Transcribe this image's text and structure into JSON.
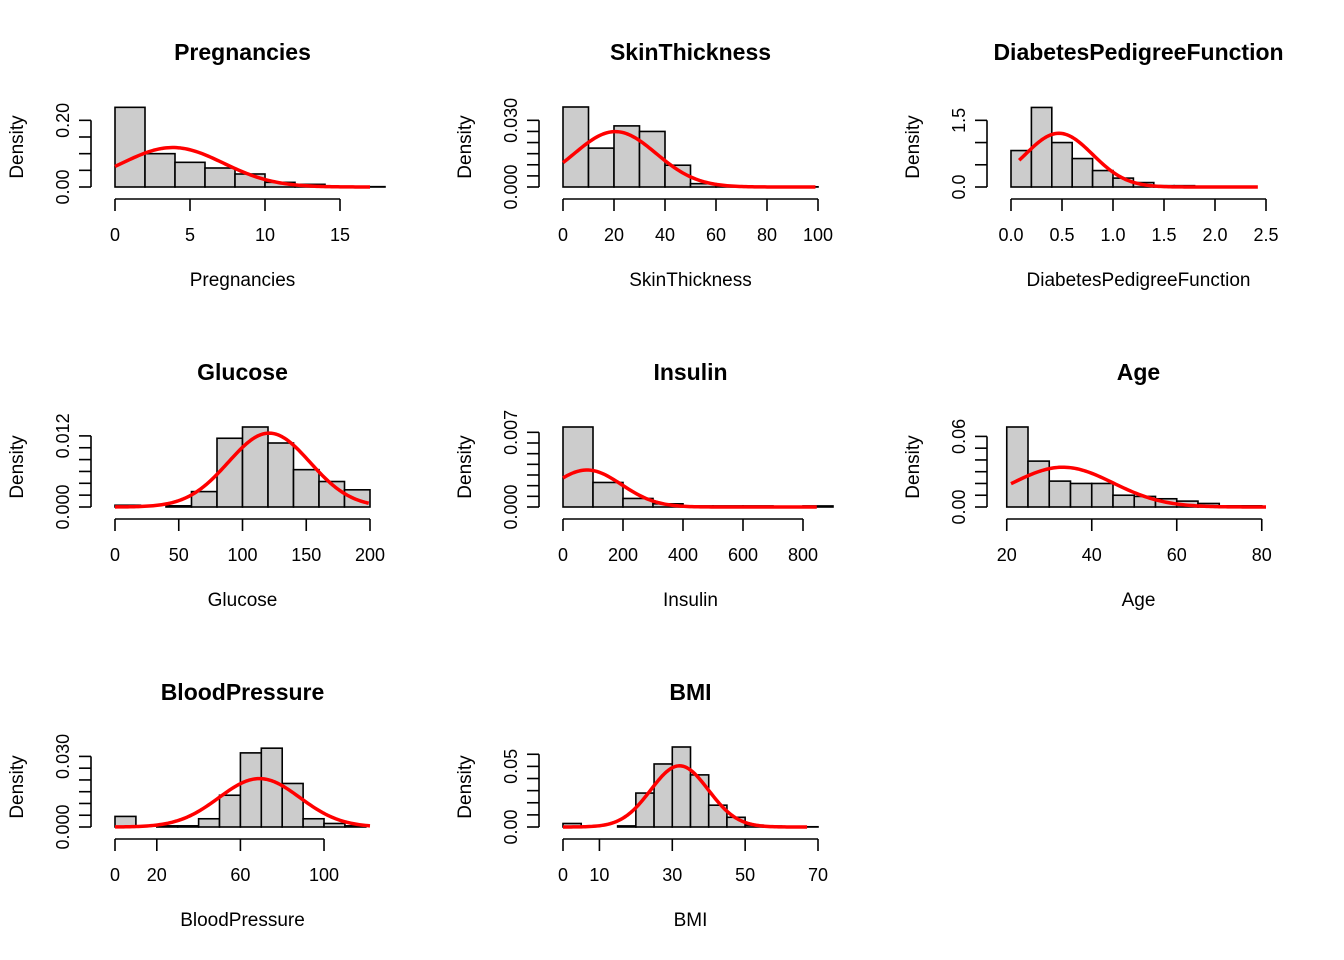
{
  "chart_data": [
    {
      "type": "bar",
      "title": "Pregnancies",
      "xlabel": "Pregnancies",
      "ylabel": "Density",
      "xlim": [
        0,
        17
      ],
      "ylim": [
        0,
        0.24
      ],
      "xticks": [
        0,
        5,
        10,
        15
      ],
      "yticks": [
        0.0,
        0.05,
        0.1,
        0.15,
        0.2
      ],
      "ytick_labels": [
        "0.00",
        "",
        "",
        "",
        "0.20"
      ],
      "bin_edges": [
        0,
        2,
        4,
        6,
        8,
        10,
        12,
        14,
        16,
        18
      ],
      "values": [
        0.239,
        0.1,
        0.074,
        0.057,
        0.039,
        0.014,
        0.008,
        0.001,
        0.001
      ],
      "density_curve": {
        "type": "normal",
        "mean": 3.85,
        "sd": 3.37
      },
      "curve_range": [
        0,
        17
      ]
    },
    {
      "type": "bar",
      "title": "SkinThickness",
      "xlabel": "SkinThickness",
      "ylabel": "Density",
      "xlim": [
        0,
        100
      ],
      "ylim": [
        0,
        0.036
      ],
      "xticks": [
        0,
        20,
        40,
        60,
        80,
        100
      ],
      "yticks": [
        0.0,
        0.005,
        0.01,
        0.015,
        0.02,
        0.025,
        0.03
      ],
      "ytick_labels": [
        "0.000",
        "",
        "",
        "",
        "",
        "",
        "0.030"
      ],
      "bin_edges": [
        0,
        10,
        20,
        30,
        40,
        50,
        60,
        70,
        80,
        90,
        100
      ],
      "values": [
        0.036,
        0.0175,
        0.0275,
        0.025,
        0.0098,
        0.0015,
        0.0003,
        0,
        0,
        0.0001
      ],
      "density_curve": {
        "type": "normal",
        "mean": 20.5,
        "sd": 16.0
      },
      "curve_range": [
        0,
        99
      ]
    },
    {
      "type": "bar",
      "title": "DiabetesPedigreeFunction",
      "xlabel": "DiabetesPedigreeFunction",
      "ylabel": "Density",
      "xlim": [
        0,
        2.5
      ],
      "ylim": [
        0,
        1.8
      ],
      "xticks": [
        0.0,
        0.5,
        1.0,
        1.5,
        2.0,
        2.5
      ],
      "xtick_labels": [
        "0.0",
        "0.5",
        "1.0",
        "1.5",
        "2.0",
        "2.5"
      ],
      "yticks": [
        0.0,
        0.5,
        1.0,
        1.5
      ],
      "ytick_labels": [
        "0.0",
        "",
        "",
        "1.5"
      ],
      "bin_edges": [
        0,
        0.2,
        0.4,
        0.6,
        0.8,
        1.0,
        1.2,
        1.4,
        1.6,
        1.8,
        2.0,
        2.2,
        2.4
      ],
      "values": [
        0.82,
        1.79,
        1.0,
        0.64,
        0.37,
        0.2,
        0.1,
        0.03,
        0.03,
        0.01,
        0.01,
        0.01
      ],
      "density_curve": {
        "type": "normal",
        "mean": 0.47,
        "sd": 0.33
      },
      "curve_range": [
        0.08,
        2.42
      ]
    },
    {
      "type": "bar",
      "title": "Glucose",
      "xlabel": "Glucose",
      "ylabel": "Density",
      "xlim": [
        0,
        200
      ],
      "ylim": [
        0,
        0.0135
      ],
      "xticks": [
        0,
        50,
        100,
        150,
        200
      ],
      "yticks": [
        0.0,
        0.002,
        0.004,
        0.006,
        0.008,
        0.01,
        0.012
      ],
      "ytick_labels": [
        "0.000",
        "",
        "",
        "",
        "",
        "",
        "0.012"
      ],
      "bin_edges": [
        0,
        20,
        40,
        60,
        80,
        100,
        120,
        140,
        160,
        180,
        200
      ],
      "values": [
        0.0003,
        0,
        0.0002,
        0.0026,
        0.0116,
        0.0135,
        0.0108,
        0.0063,
        0.0043,
        0.0029
      ],
      "density_curve": {
        "type": "normal",
        "mean": 120.9,
        "sd": 32.0
      },
      "curve_range": [
        0,
        199
      ]
    },
    {
      "type": "bar",
      "title": "Insulin",
      "xlabel": "Insulin",
      "ylabel": "Density",
      "xlim": [
        0,
        850
      ],
      "ylim": [
        0,
        0.0075
      ],
      "xticks": [
        0,
        200,
        400,
        600,
        800
      ],
      "yticks": [
        0.0,
        0.001,
        0.002,
        0.003,
        0.004,
        0.005,
        0.006,
        0.007
      ],
      "ytick_labels": [
        "0.000",
        "",
        "",
        "",
        "",
        "",
        "",
        "0.007"
      ],
      "bin_edges": [
        0,
        100,
        200,
        300,
        400,
        500,
        600,
        700,
        800,
        900
      ],
      "values": [
        0.0075,
        0.0023,
        0.0008,
        0.0003,
        0.0001,
        0.0001,
        0.0001,
        0,
        0.0001
      ],
      "density_curve": {
        "type": "normal",
        "mean": 80,
        "sd": 115
      },
      "curve_range": [
        0,
        846
      ]
    },
    {
      "type": "bar",
      "title": "Age",
      "xlabel": "Age",
      "ylabel": "Density",
      "xlim": [
        21,
        81
      ],
      "ylim": [
        0,
        0.068
      ],
      "xticks": [
        20,
        40,
        60,
        80
      ],
      "yticks": [
        0.0,
        0.01,
        0.02,
        0.03,
        0.04,
        0.05,
        0.06
      ],
      "ytick_labels": [
        "0.00",
        "",
        "",
        "",
        "",
        "",
        "0.06"
      ],
      "bin_edges": [
        20,
        25,
        30,
        35,
        40,
        45,
        50,
        55,
        60,
        65,
        70,
        75,
        80
      ],
      "values": [
        0.068,
        0.039,
        0.022,
        0.02,
        0.02,
        0.01,
        0.009,
        0.007,
        0.005,
        0.003,
        0.001,
        0.001
      ],
      "density_curve": {
        "type": "normal",
        "mean": 33.2,
        "sd": 11.8
      },
      "curve_range": [
        21,
        81
      ]
    },
    {
      "type": "bar",
      "title": "BloodPressure",
      "xlabel": "BloodPressure",
      "ylabel": "Density",
      "xlim": [
        0,
        122
      ],
      "ylim": [
        0,
        0.034
      ],
      "xticks": [
        0,
        20,
        60,
        100
      ],
      "yticks": [
        0.0,
        0.005,
        0.01,
        0.015,
        0.02,
        0.025,
        0.03
      ],
      "ytick_labels": [
        "0.000",
        "",
        "",
        "",
        "",
        "",
        "0.030"
      ],
      "bin_edges": [
        0,
        10,
        20,
        30,
        40,
        50,
        60,
        70,
        80,
        90,
        100,
        110,
        120
      ],
      "values": [
        0.0045,
        0,
        0.0005,
        0.0005,
        0.0035,
        0.0135,
        0.0315,
        0.0335,
        0.0185,
        0.0035,
        0.0015,
        0.0005
      ],
      "density_curve": {
        "type": "normal",
        "mean": 69.1,
        "sd": 19.4
      },
      "curve_range": [
        0,
        122
      ]
    },
    {
      "type": "bar",
      "title": "BMI",
      "xlabel": "BMI",
      "ylabel": "Density",
      "xlim": [
        0,
        70
      ],
      "ylim": [
        0,
        0.066
      ],
      "xticks": [
        0,
        10,
        30,
        50,
        70
      ],
      "yticks": [
        0.0,
        0.01,
        0.02,
        0.03,
        0.04,
        0.05,
        0.06
      ],
      "ytick_labels": [
        "0.00",
        "",
        "",
        "",
        "",
        "0.05",
        ""
      ],
      "bin_edges": [
        0,
        5,
        10,
        15,
        20,
        25,
        30,
        35,
        40,
        45,
        50,
        55,
        60,
        65,
        70
      ],
      "values": [
        0.0029,
        0,
        0,
        0.0009,
        0.028,
        0.052,
        0.066,
        0.043,
        0.018,
        0.008,
        0.0015,
        0.0008,
        0.0003,
        0.0002
      ],
      "density_curve": {
        "type": "normal",
        "mean": 32.0,
        "sd": 7.9
      },
      "curve_range": [
        0,
        67
      ]
    }
  ]
}
